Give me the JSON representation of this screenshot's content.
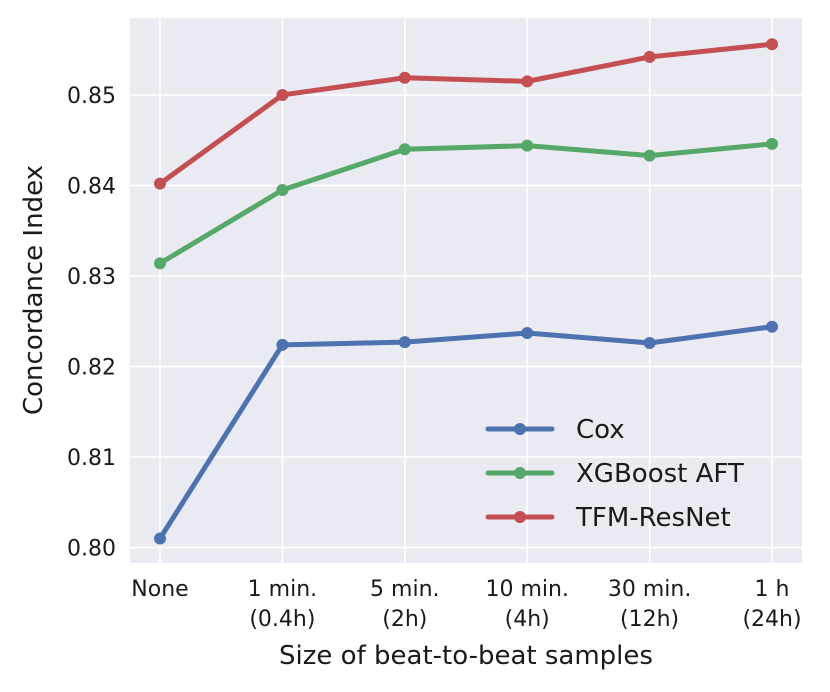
{
  "chart_data": {
    "type": "line",
    "title": "",
    "xlabel": "Size of beat-to-beat samples",
    "ylabel": "Concordance Index",
    "categories": [
      [
        "None"
      ],
      [
        "1 min.",
        "(0.4h)"
      ],
      [
        "5 min.",
        "(2h)"
      ],
      [
        "10 min.",
        "(4h)"
      ],
      [
        "30 min.",
        "(12h)"
      ],
      [
        "1 h",
        "(24h)"
      ]
    ],
    "yticks": [
      "0.80",
      "0.81",
      "0.82",
      "0.83",
      "0.84",
      "0.85"
    ],
    "ylim": [
      0.7983,
      0.8585
    ],
    "grid": true,
    "legend_position": "lower-right",
    "series": [
      {
        "name": "Cox",
        "color": "#4c72b0",
        "values": [
          0.801,
          0.8224,
          0.8227,
          0.8237,
          0.8226,
          0.8244
        ]
      },
      {
        "name": "XGBoost AFT",
        "color": "#55a868",
        "values": [
          0.8314,
          0.8395,
          0.844,
          0.8444,
          0.8433,
          0.8446
        ]
      },
      {
        "name": "TFM-ResNet",
        "color": "#c44e52",
        "values": [
          0.8402,
          0.85,
          0.8519,
          0.8515,
          0.8542,
          0.8556
        ]
      }
    ]
  }
}
